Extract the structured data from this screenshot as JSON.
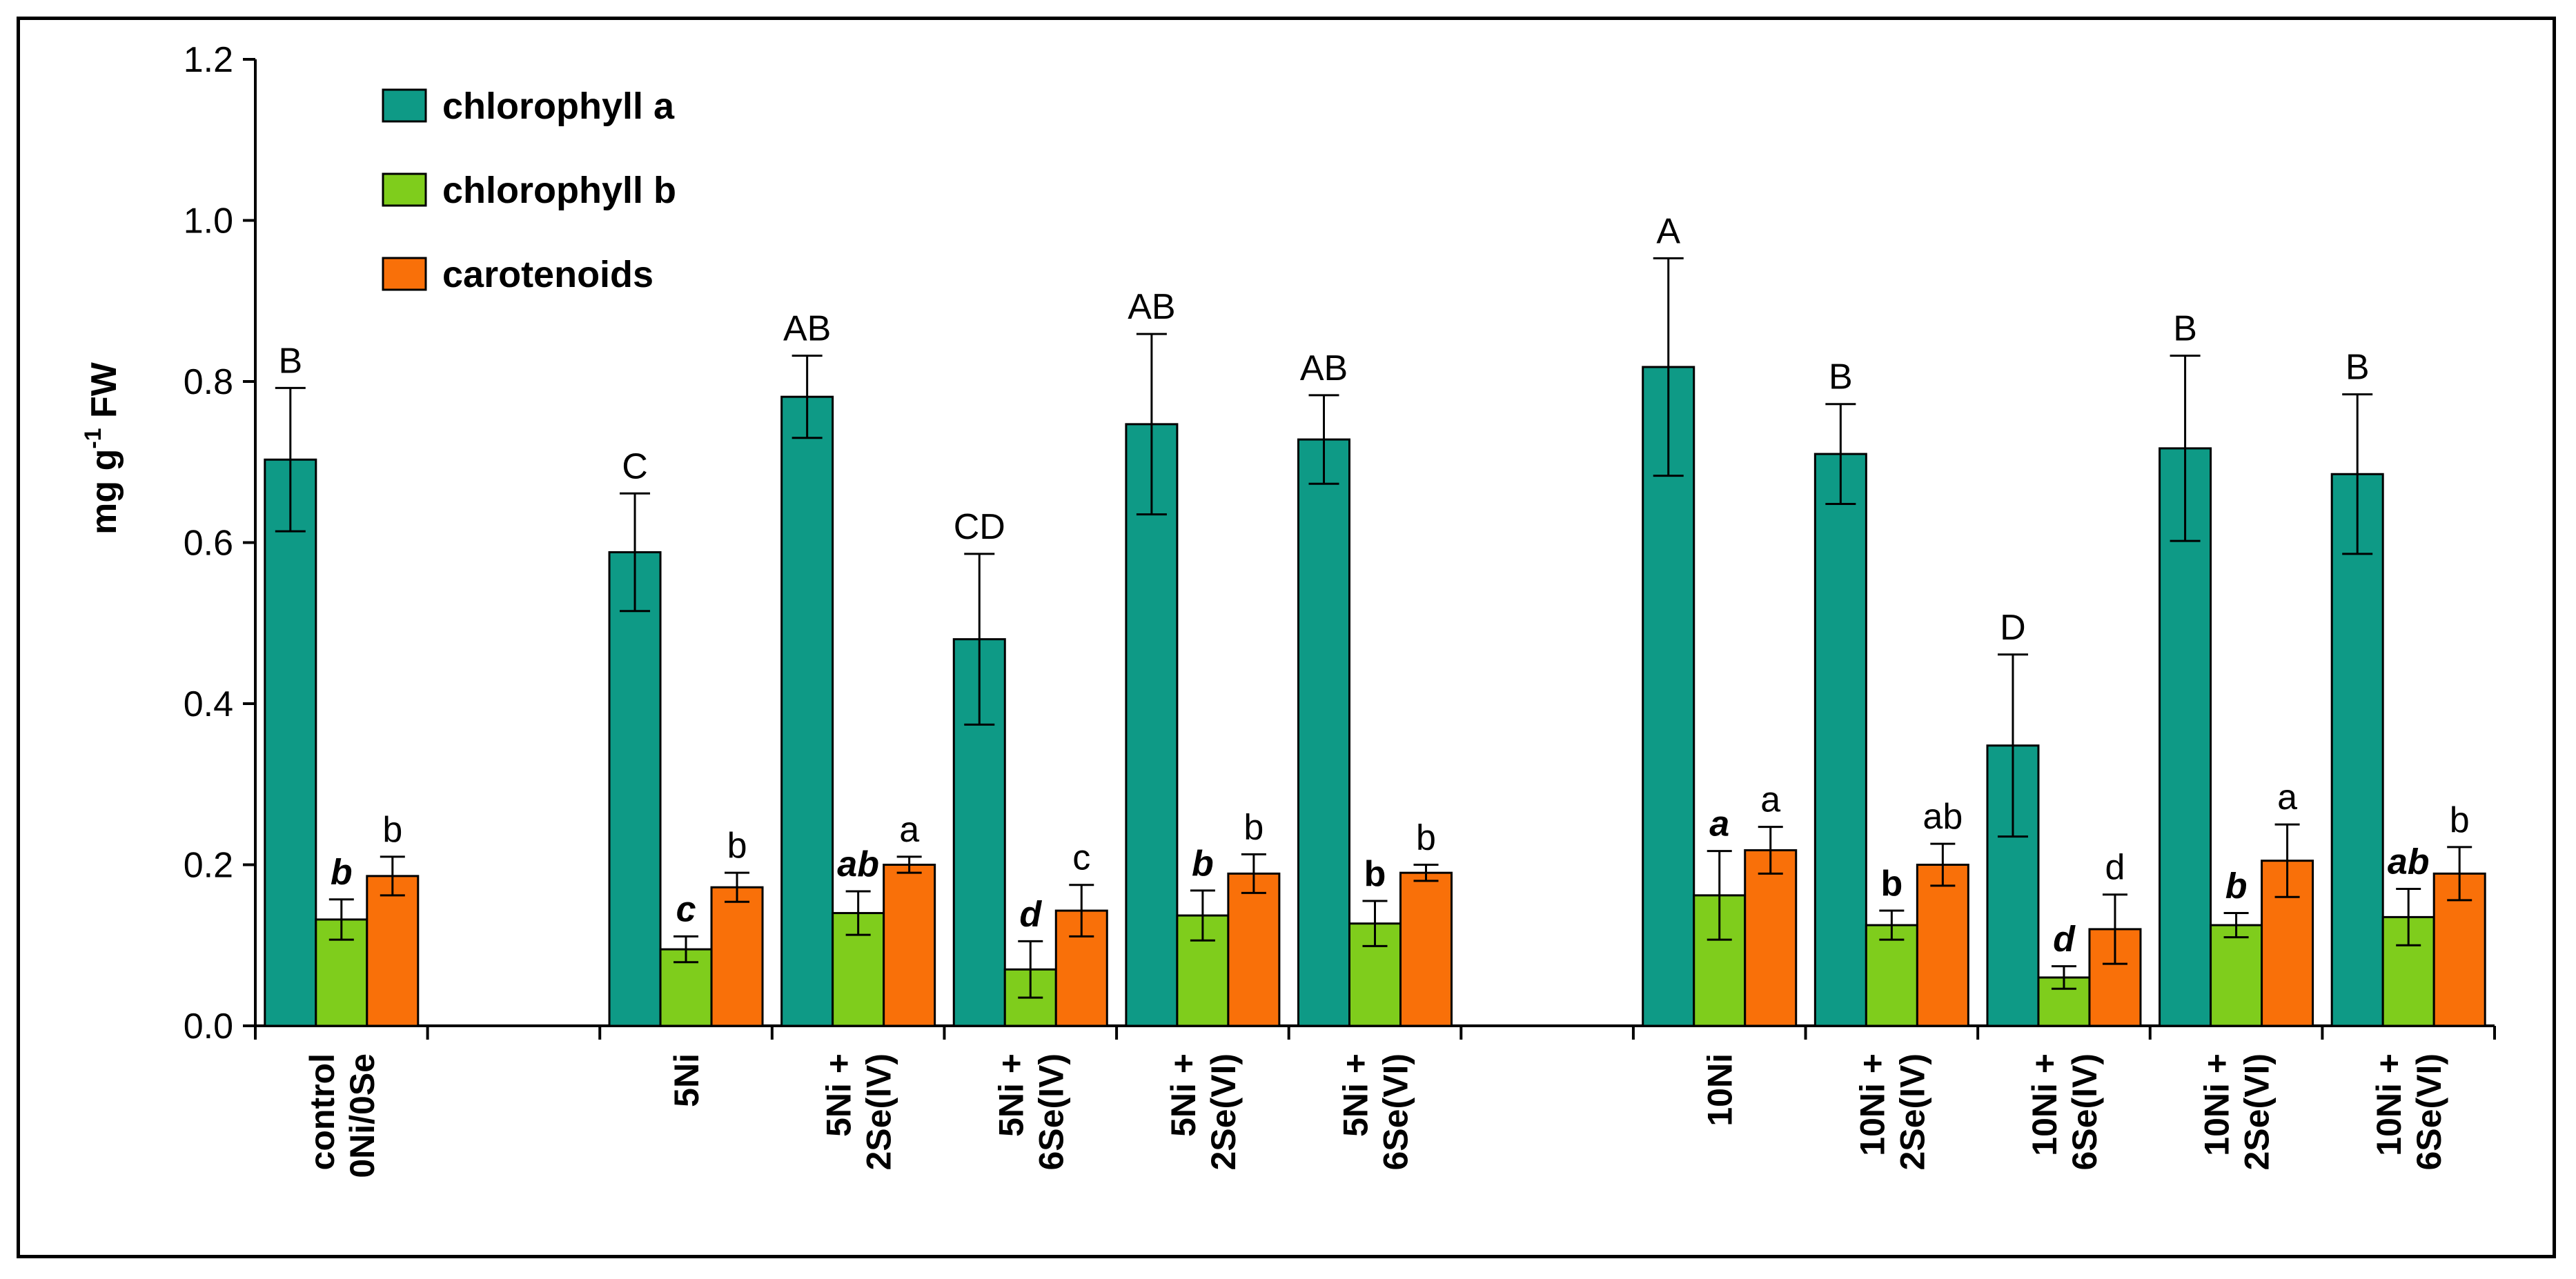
{
  "chart_data": {
    "type": "bar",
    "title": "",
    "xlabel": "",
    "ylabel": "mg g-1 FW",
    "ylabel_base": "mg g",
    "ylabel_sup": "-1",
    "ylabel_tail": " FW",
    "ylim": [
      0,
      1.2
    ],
    "yticks": [
      "0.0",
      "0.2",
      "0.4",
      "0.6",
      "0.8",
      "1.0",
      "1.2"
    ],
    "legend_position": "top-left",
    "groups": [
      {
        "label_lines": [
          "control",
          "0Ni/0Se"
        ],
        "slot": 0
      },
      {
        "label_lines": [
          "5Ni"
        ],
        "slot": 2
      },
      {
        "label_lines": [
          "5Ni +",
          "2Se(IV)"
        ],
        "slot": 3
      },
      {
        "label_lines": [
          "5Ni +",
          "6Se(IV)"
        ],
        "slot": 4
      },
      {
        "label_lines": [
          "5Ni +",
          "2Se(VI)"
        ],
        "slot": 5
      },
      {
        "label_lines": [
          "5Ni +",
          "6Se(VI)"
        ],
        "slot": 6
      },
      {
        "label_lines": [
          "10Ni"
        ],
        "slot": 8
      },
      {
        "label_lines": [
          "10Ni +",
          "2Se(IV)"
        ],
        "slot": 9
      },
      {
        "label_lines": [
          "10Ni +",
          "6Se(IV)"
        ],
        "slot": 10
      },
      {
        "label_lines": [
          "10Ni +",
          "2Se(VI)"
        ],
        "slot": 11
      },
      {
        "label_lines": [
          "10Ni +",
          "6Se(VI)"
        ],
        "slot": 12
      }
    ],
    "series": [
      {
        "name": "chlorophyll a",
        "color": "#0e9a86",
        "values": [
          0.703,
          0.588,
          0.781,
          0.48,
          0.747,
          0.728,
          0.818,
          0.71,
          0.348,
          0.717,
          0.685
        ],
        "errors": [
          0.089,
          0.073,
          0.051,
          0.106,
          0.112,
          0.055,
          0.135,
          0.062,
          0.113,
          0.115,
          0.099
        ],
        "labels": [
          "B",
          "C",
          "AB",
          "CD",
          "AB",
          "AB",
          "A",
          "B",
          "D",
          "B",
          "B"
        ],
        "label_styles": [
          "n",
          "n",
          "n",
          "n",
          "n",
          "n",
          "n",
          "n",
          "n",
          "n",
          "n"
        ]
      },
      {
        "name": "chlorophyll b",
        "color": "#7fcd1c",
        "values": [
          0.132,
          0.095,
          0.14,
          0.07,
          0.137,
          0.127,
          0.162,
          0.125,
          0.06,
          0.125,
          0.135
        ],
        "errors": [
          0.025,
          0.016,
          0.027,
          0.035,
          0.031,
          0.028,
          0.055,
          0.018,
          0.014,
          0.015,
          0.035
        ],
        "labels": [
          "b",
          "c",
          "ab",
          "d",
          "b",
          "b",
          "a",
          "b",
          "d",
          "b",
          "ab"
        ],
        "label_styles": [
          "bi",
          "bi",
          "bi",
          "bi",
          "bi",
          "b",
          "bi",
          "b",
          "bi",
          "bi",
          "bi"
        ]
      },
      {
        "name": "carotenoids",
        "color": "#f97009",
        "values": [
          0.186,
          0.172,
          0.2,
          0.143,
          0.189,
          0.19,
          0.218,
          0.2,
          0.12,
          0.205,
          0.189
        ],
        "errors": [
          0.024,
          0.018,
          0.01,
          0.032,
          0.024,
          0.01,
          0.029,
          0.026,
          0.043,
          0.045,
          0.033
        ],
        "labels": [
          "b",
          "b",
          "a",
          "c",
          "b",
          "b",
          "a",
          "ab",
          "d",
          "a",
          "b"
        ],
        "label_styles": [
          "n",
          "n",
          "n",
          "n",
          "n",
          "n",
          "n",
          "n",
          "n",
          "n",
          "n"
        ]
      }
    ]
  }
}
